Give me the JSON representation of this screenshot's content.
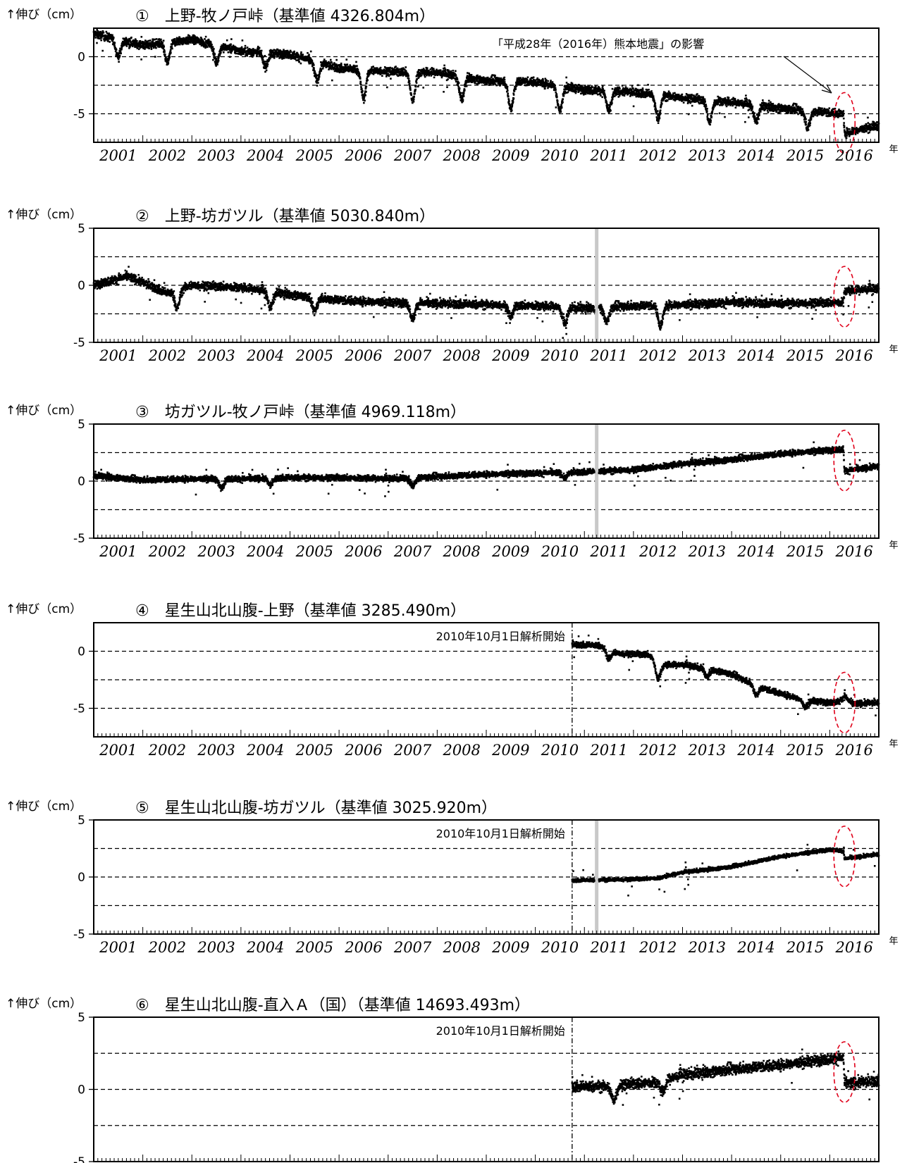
{
  "figure": {
    "y_label": "↑伸び（cm）",
    "year_unit": "年",
    "x_ticks": [
      "2001",
      "2002",
      "2003",
      "2004",
      "2005",
      "2006",
      "2007",
      "2008",
      "2009",
      "2010",
      "2011",
      "2012",
      "2013",
      "2014",
      "2015",
      "2016"
    ],
    "analysis_start_note": "2010年10月1日解析開始",
    "earthquake_note": "「平成28年（2016年）熊本地震」の影響"
  },
  "chart_data": [
    {
      "type": "scatter",
      "title": "①　上野-牧ノ戸峠（基準値 4326.804m）",
      "ylim": [
        -7.5,
        2.5
      ],
      "y_ticks": [
        0,
        -5
      ],
      "gridlines": [
        0,
        -2.5,
        -5
      ],
      "xlim": [
        2001,
        2017
      ],
      "start": 2001.0,
      "gap": null,
      "analysis_start": null,
      "quake_ellipse": {
        "x": 2016.3,
        "y": -5.8
      },
      "trend": [
        [
          2001.0,
          2.0
        ],
        [
          2002.0,
          1.0
        ],
        [
          2003.0,
          1.5
        ],
        [
          2004.0,
          0.5
        ],
        [
          2005.0,
          0.2
        ],
        [
          2006.0,
          -1.0
        ],
        [
          2007.0,
          -1.3
        ],
        [
          2008.0,
          -1.4
        ],
        [
          2009.0,
          -2.1
        ],
        [
          2010.0,
          -2.2
        ],
        [
          2011.0,
          -2.9
        ],
        [
          2012.0,
          -3.1
        ],
        [
          2013.0,
          -3.6
        ],
        [
          2014.0,
          -4.0
        ],
        [
          2015.0,
          -4.5
        ],
        [
          2016.0,
          -4.9
        ],
        [
          2016.28,
          -5.0
        ],
        [
          2016.3,
          -6.7
        ],
        [
          2017.0,
          -6.0
        ]
      ],
      "dips": [
        [
          2001.5,
          -1.5
        ],
        [
          2002.5,
          -1.8
        ],
        [
          2003.5,
          -1.5
        ],
        [
          2004.5,
          -1.2
        ],
        [
          2005.55,
          -1.6
        ],
        [
          2006.5,
          -2.5
        ],
        [
          2007.5,
          -2.5
        ],
        [
          2008.5,
          -2.0
        ],
        [
          2009.5,
          -2.4
        ],
        [
          2010.5,
          -2.2
        ],
        [
          2011.5,
          -1.8
        ],
        [
          2012.5,
          -2.1
        ],
        [
          2013.55,
          -1.9
        ],
        [
          2014.5,
          -1.4
        ],
        [
          2015.55,
          -1.5
        ]
      ],
      "noise": 0.35
    },
    {
      "type": "scatter",
      "title": "②　上野-坊ガツル（基準値 5030.840m）",
      "ylim": [
        -5,
        5
      ],
      "y_ticks": [
        5,
        0,
        -5
      ],
      "gridlines": [
        2.5,
        0,
        -2.5
      ],
      "xlim": [
        2001,
        2017
      ],
      "start": 2001.0,
      "gap": 2011.25,
      "analysis_start": null,
      "quake_ellipse": {
        "x": 2016.3,
        "y": -1.0
      },
      "trend": [
        [
          2001.0,
          0.0
        ],
        [
          2001.7,
          0.8
        ],
        [
          2002.5,
          -0.7
        ],
        [
          2003.0,
          0.0
        ],
        [
          2004.0,
          -0.2
        ],
        [
          2005.0,
          -0.8
        ],
        [
          2006.0,
          -1.3
        ],
        [
          2007.0,
          -1.5
        ],
        [
          2008.0,
          -1.6
        ],
        [
          2009.0,
          -1.7
        ],
        [
          2010.0,
          -1.8
        ],
        [
          2011.0,
          -2.0
        ],
        [
          2012.0,
          -1.8
        ],
        [
          2013.0,
          -1.7
        ],
        [
          2014.0,
          -1.5
        ],
        [
          2015.0,
          -1.6
        ],
        [
          2016.28,
          -1.5
        ],
        [
          2016.3,
          -0.5
        ],
        [
          2017.0,
          -0.3
        ]
      ],
      "dips": [
        [
          2002.7,
          -1.6
        ],
        [
          2004.6,
          -1.4
        ],
        [
          2005.5,
          -1.2
        ],
        [
          2007.5,
          -1.4
        ],
        [
          2009.5,
          -1.0
        ],
        [
          2010.6,
          -1.5
        ],
        [
          2011.45,
          -1.3
        ],
        [
          2012.55,
          -1.8
        ]
      ],
      "noise": 0.35
    },
    {
      "type": "scatter",
      "title": "③　坊ガツル-牧ノ戸峠（基準値 4969.118m）",
      "ylim": [
        -5,
        5
      ],
      "y_ticks": [
        5,
        0,
        -5
      ],
      "gridlines": [
        2.5,
        0,
        -2.5
      ],
      "xlim": [
        2001,
        2017
      ],
      "start": 2001.0,
      "gap": 2011.25,
      "analysis_start": null,
      "quake_ellipse": {
        "x": 2016.3,
        "y": 1.8
      },
      "trend": [
        [
          2001.0,
          0.5
        ],
        [
          2002.0,
          0.1
        ],
        [
          2003.0,
          0.2
        ],
        [
          2004.0,
          0.2
        ],
        [
          2005.0,
          0.3
        ],
        [
          2006.0,
          0.3
        ],
        [
          2007.0,
          0.2
        ],
        [
          2008.0,
          0.4
        ],
        [
          2009.0,
          0.6
        ],
        [
          2010.0,
          0.7
        ],
        [
          2011.0,
          0.8
        ],
        [
          2012.0,
          1.0
        ],
        [
          2013.0,
          1.5
        ],
        [
          2014.0,
          1.9
        ],
        [
          2015.0,
          2.4
        ],
        [
          2016.28,
          2.8
        ],
        [
          2016.3,
          0.9
        ],
        [
          2017.0,
          1.3
        ]
      ],
      "dips": [
        [
          2003.6,
          -0.8
        ],
        [
          2004.6,
          -0.6
        ],
        [
          2007.5,
          -0.7
        ],
        [
          2010.6,
          -0.5
        ]
      ],
      "noise": 0.25
    },
    {
      "type": "scatter",
      "title": "④　星生山北山腹-上野（基準値 3285.490m）",
      "ylim": [
        -7.5,
        2.5
      ],
      "y_ticks": [
        0,
        -5
      ],
      "gridlines": [
        0,
        -2.5,
        -5
      ],
      "xlim": [
        2001,
        2017
      ],
      "start": 2010.75,
      "gap": null,
      "analysis_start": 2010.75,
      "quake_ellipse": {
        "x": 2016.3,
        "y": -4.5
      },
      "trend": [
        [
          2010.75,
          0.6
        ],
        [
          2011.3,
          0.5
        ],
        [
          2011.7,
          -0.2
        ],
        [
          2012.3,
          -0.3
        ],
        [
          2012.6,
          -1.2
        ],
        [
          2013.0,
          -1.2
        ],
        [
          2013.6,
          -1.6
        ],
        [
          2014.0,
          -2.0
        ],
        [
          2014.6,
          -3.2
        ],
        [
          2015.0,
          -3.7
        ],
        [
          2015.5,
          -4.3
        ],
        [
          2016.0,
          -4.5
        ],
        [
          2016.2,
          -4.4
        ],
        [
          2016.3,
          -3.9
        ],
        [
          2016.45,
          -4.6
        ],
        [
          2017.0,
          -4.5
        ]
      ],
      "dips": [
        [
          2011.5,
          -0.8
        ],
        [
          2012.5,
          -1.5
        ],
        [
          2013.5,
          -0.7
        ],
        [
          2014.5,
          -0.8
        ],
        [
          2015.5,
          -0.6
        ]
      ],
      "noise": 0.25
    },
    {
      "type": "scatter",
      "title": "⑤　星生山北山腹-坊ガツル（基準値 3025.920m）",
      "ylim": [
        -5,
        5
      ],
      "y_ticks": [
        5,
        0,
        -5
      ],
      "gridlines": [
        2.5,
        0,
        -2.5
      ],
      "xlim": [
        2001,
        2017
      ],
      "start": 2010.75,
      "gap": 2011.25,
      "analysis_start": 2010.75,
      "quake_ellipse": {
        "x": 2016.3,
        "y": 1.8
      },
      "trend": [
        [
          2010.75,
          -0.3
        ],
        [
          2012.0,
          -0.2
        ],
        [
          2012.5,
          -0.1
        ],
        [
          2013.0,
          0.4
        ],
        [
          2014.0,
          0.9
        ],
        [
          2015.0,
          1.8
        ],
        [
          2016.0,
          2.4
        ],
        [
          2016.28,
          2.3
        ],
        [
          2016.3,
          1.6
        ],
        [
          2017.0,
          2.0
        ]
      ],
      "dips": [],
      "noise": 0.15
    },
    {
      "type": "scatter",
      "title": "⑥　星生山北山腹-直入Ａ（国）（基準値 14693.493m）",
      "ylim": [
        -5,
        5
      ],
      "y_ticks": [
        5,
        0,
        -5
      ],
      "gridlines": [
        2.5,
        0,
        -2.5
      ],
      "xlim": [
        2001,
        2017
      ],
      "start": 2010.75,
      "gap": null,
      "analysis_start": 2010.75,
      "quake_ellipse": {
        "x": 2016.3,
        "y": 1.2
      },
      "trend": [
        [
          2010.75,
          0.2
        ],
        [
          2011.5,
          0.2
        ],
        [
          2012.0,
          0.4
        ],
        [
          2012.5,
          0.5
        ],
        [
          2013.0,
          1.0
        ],
        [
          2014.0,
          1.4
        ],
        [
          2015.0,
          1.7
        ],
        [
          2016.0,
          2.1
        ],
        [
          2016.28,
          2.2
        ],
        [
          2016.3,
          0.4
        ],
        [
          2017.0,
          0.6
        ]
      ],
      "dips": [
        [
          2011.6,
          -1.0
        ],
        [
          2012.6,
          -0.8
        ]
      ],
      "noise": 0.35
    }
  ]
}
